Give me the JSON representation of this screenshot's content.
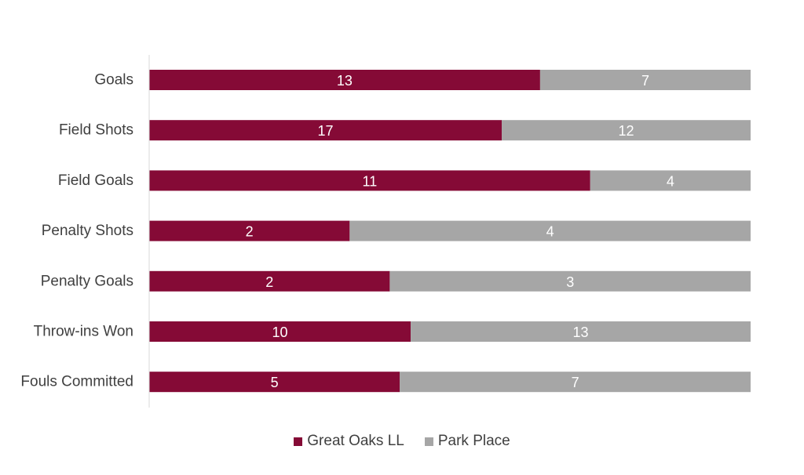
{
  "chart_data": {
    "type": "bar",
    "orientation": "horizontal",
    "stacking": "percent",
    "categories": [
      "Goals",
      "Field Shots",
      "Field Goals",
      "Penalty Shots",
      "Penalty Goals",
      "Throw-ins Won",
      "Fouls Committed"
    ],
    "series": [
      {
        "name": "Great Oaks LL",
        "color": "#850a36",
        "values": [
          13,
          17,
          11,
          2,
          2,
          10,
          5
        ]
      },
      {
        "name": "Park Place",
        "color": "#a6a6a6",
        "values": [
          7,
          12,
          4,
          4,
          3,
          13,
          7
        ]
      }
    ],
    "title": "",
    "xlabel": "",
    "ylabel": "",
    "grid": false,
    "legend_position": "bottom"
  }
}
